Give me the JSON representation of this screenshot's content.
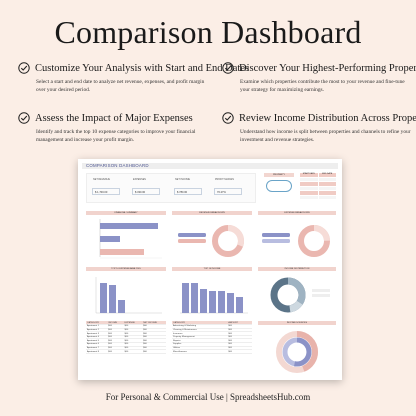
{
  "title": "Comparison Dashboard",
  "features": [
    {
      "heading": "Customize Your Analysis with Start and End Dates",
      "desc": "Select a start and end date to analyze net revenue, expenses, and profit margin over your desired period."
    },
    {
      "heading": "Discover Your Highest-Performing Properties",
      "desc": "Examine which properties contribute the most to your revenue and fine-tune your strategy for maximizing earnings."
    },
    {
      "heading": "Assess the Impact of Major Expenses",
      "desc": "Identify and track the top 10 expense categories to improve your financial management and increase your profit margin."
    },
    {
      "heading": "Review Income Distribution Across Properties",
      "desc": "Understand how income is split between properties and channels to refine your investment and revenue strategies."
    }
  ],
  "dashboard": {
    "title": "COMPARISON DASHBOARD",
    "kpis": [
      {
        "label": "NET REVENUE",
        "value": "$ 1,700.00"
      },
      {
        "label": "EXPENSES",
        "value": "$ 330.00"
      },
      {
        "label": "NET INCOME",
        "value": "$ 780.00"
      },
      {
        "label": "PROFIT MARGIN",
        "value": "70.27%"
      }
    ],
    "property_label": "PROPERTY",
    "date_headers": [
      "START DATE",
      "END DATE"
    ],
    "section_titles": [
      "FINANCIAL SUMMARY",
      "REVENUE BREAKDOWN",
      "EXPENSE BREAKDOWN",
      "TOP 10 EXPENSE ANALYSIS",
      "TOP 10 INCOME",
      "INCOME DISTRIBUTION",
      "INCOME SOURCES"
    ],
    "table_headers": [
      "CATEGORY",
      "INCOME",
      "EXPENSE",
      "NET INCOME"
    ],
    "table_rows": [
      [
        "Apartment 1",
        "$00",
        "$00",
        "$00"
      ],
      [
        "Apartment 2",
        "$00",
        "$00",
        "$00"
      ],
      [
        "Apartment 3",
        "$00",
        "$00",
        "$00"
      ],
      [
        "Apartment 4",
        "$00",
        "$00",
        "$00"
      ],
      [
        "Apartment 5",
        "$00",
        "$00",
        "$00"
      ],
      [
        "Apartment 6",
        "$00",
        "$00",
        "$00"
      ],
      [
        "Apartment 7",
        "$00",
        "$00",
        "$00"
      ],
      [
        "Apartment 8",
        "$00",
        "$00",
        "$00"
      ]
    ],
    "expense_headers": [
      "CATEGORY",
      "AMOUNT"
    ],
    "expense_rows": [
      [
        "Advertising & Marketing",
        "$00"
      ],
      [
        "Cleaning & Maintenance",
        "$00"
      ],
      [
        "Insurance",
        "$00"
      ],
      [
        "Property Management",
        "$00"
      ],
      [
        "Repairs",
        "$00"
      ],
      [
        "Supplies",
        "$00"
      ],
      [
        "Utilities",
        "$00"
      ],
      [
        "Miscellaneous",
        "$00"
      ]
    ]
  },
  "colors": {
    "background": "#fbeee6",
    "accent_pink": "#f1d3cd",
    "accent_blue": "#8b92c7",
    "accent_teal": "#5b7488"
  },
  "footer": "For Personal & Commercial Use  |  SpreadsheetsHub.com"
}
